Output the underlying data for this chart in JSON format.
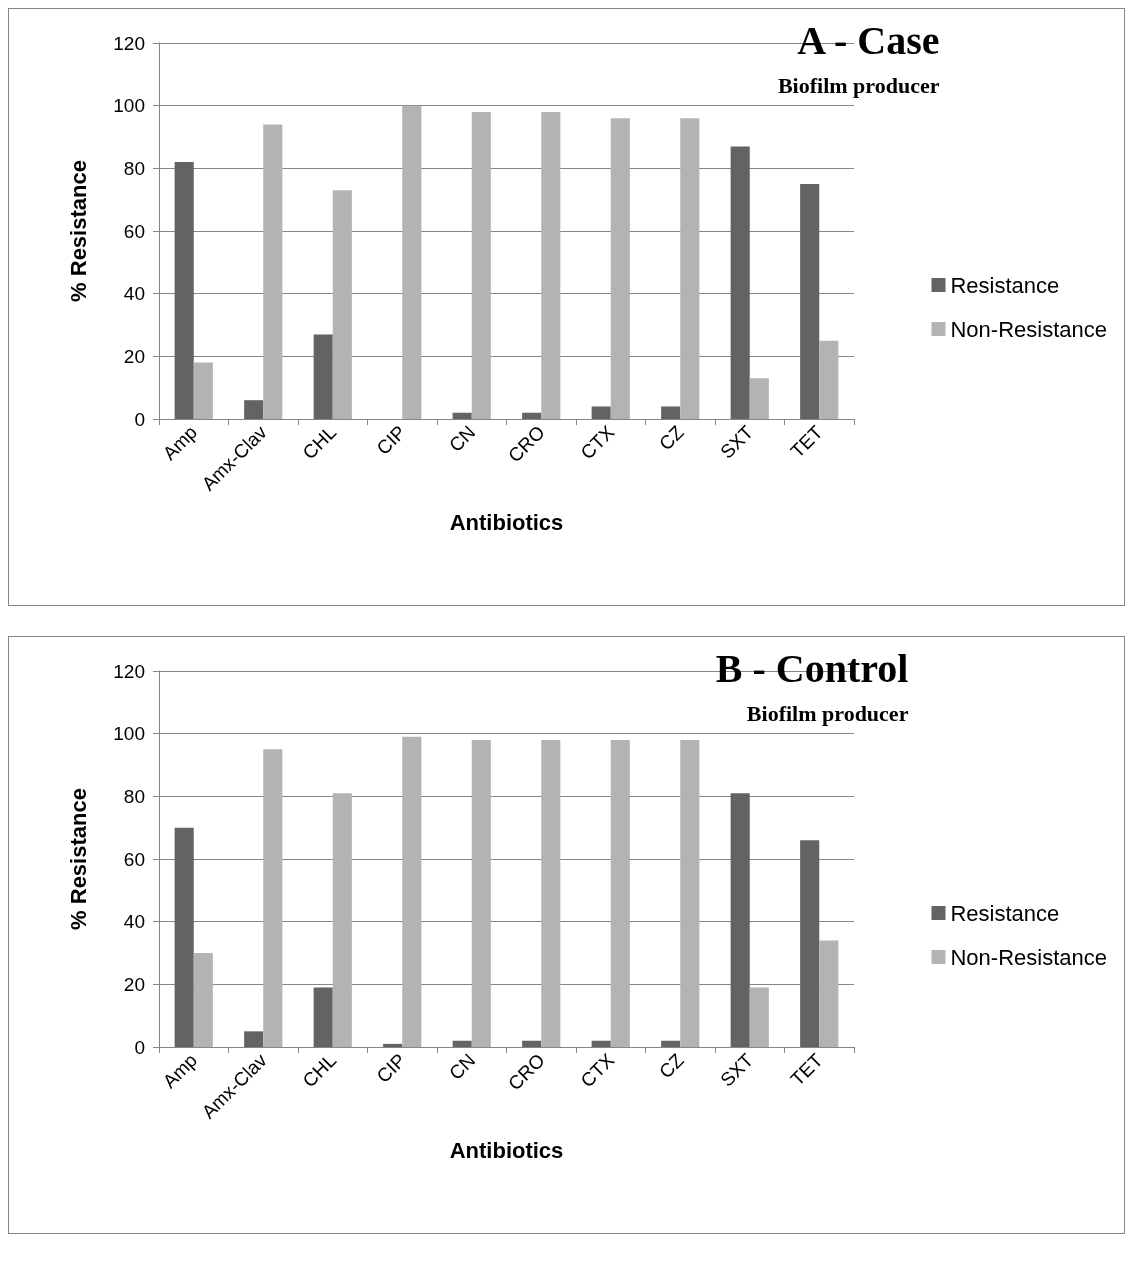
{
  "chart_data": [
    {
      "type": "bar",
      "title": "A - Case",
      "subtitle": "Biofilm producer",
      "xlabel": "Antibiotics",
      "ylabel": "% Resistance",
      "categories": [
        "Amp",
        "Amx-Clav",
        "CHL",
        "CIP",
        "CN",
        "CRO",
        "CTX",
        "CZ",
        "SXT",
        "TET"
      ],
      "series": [
        {
          "name": "Resistance",
          "color": "#636363",
          "values": [
            82,
            6,
            27,
            0,
            2,
            2,
            4,
            4,
            87,
            75
          ]
        },
        {
          "name": "Non-Resistance",
          "color": "#b3b3b3",
          "values": [
            18,
            94,
            73,
            100,
            98,
            98,
            96,
            96,
            13,
            25
          ]
        }
      ],
      "ylim": [
        0,
        120
      ],
      "yticks": [
        0,
        20,
        40,
        60,
        80,
        100,
        120
      ],
      "grid": "y",
      "legend": "right"
    },
    {
      "type": "bar",
      "title": "B - Control",
      "subtitle": "Biofilm producer",
      "xlabel": "Antibiotics",
      "ylabel": "% Resistance",
      "categories": [
        "Amp",
        "Amx-Clav",
        "CHL",
        "CIP",
        "CN",
        "CRO",
        "CTX",
        "CZ",
        "SXT",
        "TET"
      ],
      "series": [
        {
          "name": "Resistance",
          "color": "#636363",
          "values": [
            70,
            5,
            19,
            1,
            2,
            2,
            2,
            2,
            81,
            66
          ]
        },
        {
          "name": "Non-Resistance",
          "color": "#b3b3b3",
          "values": [
            30,
            95,
            81,
            99,
            98,
            98,
            98,
            98,
            19,
            34
          ]
        }
      ],
      "ylim": [
        0,
        120
      ],
      "yticks": [
        0,
        20,
        40,
        60,
        80,
        100,
        120
      ],
      "grid": "y",
      "legend": "right"
    }
  ]
}
